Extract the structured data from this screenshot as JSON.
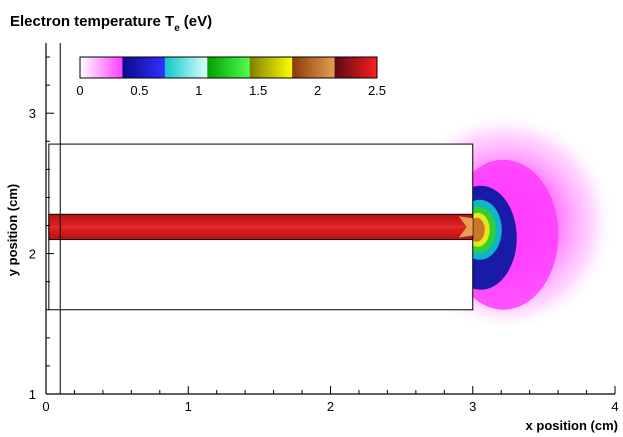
{
  "chart_data": {
    "type": "heatmap",
    "title": "Electron temperature T",
    "title_subscript": "e",
    "title_unit": "(eV)",
    "xlabel": "x position (cm)",
    "ylabel": "y position (cm)",
    "xlim": [
      0,
      4
    ],
    "ylim": [
      1,
      3.5
    ],
    "x_ticks": [
      "0",
      "1",
      "2",
      "3",
      "4"
    ],
    "y_ticks": [
      "1",
      "2",
      "3"
    ],
    "colorbar": {
      "range": [
        0,
        2.5
      ],
      "tick_labels": [
        "0",
        "0.5",
        "1",
        "1.5",
        "2",
        "2.5"
      ],
      "colors": [
        "#ffffff",
        "#ff3cff",
        "#0a0a8c",
        "#3232ff",
        "#10c8c8",
        "#dcffff",
        "#00a000",
        "#50ff50",
        "#808000",
        "#ffff00",
        "#8b3a0a",
        "#e6a050",
        "#5a0a14",
        "#ff1e1e"
      ]
    },
    "structures": {
      "outer_block": {
        "x": [
          0.02,
          3.0
        ],
        "y": [
          1.6,
          2.78
        ]
      },
      "inner_channel": {
        "x": [
          0.02,
          3.0
        ],
        "y": [
          2.1,
          2.28
        ]
      },
      "vertical_line_x": 0.1
    },
    "field": {
      "channel_Te": 2.35,
      "plume_center": [
        3.18,
        2.17
      ],
      "contour_levels": [
        2.0,
        1.5,
        1.0,
        0.5,
        0.3
      ]
    }
  }
}
